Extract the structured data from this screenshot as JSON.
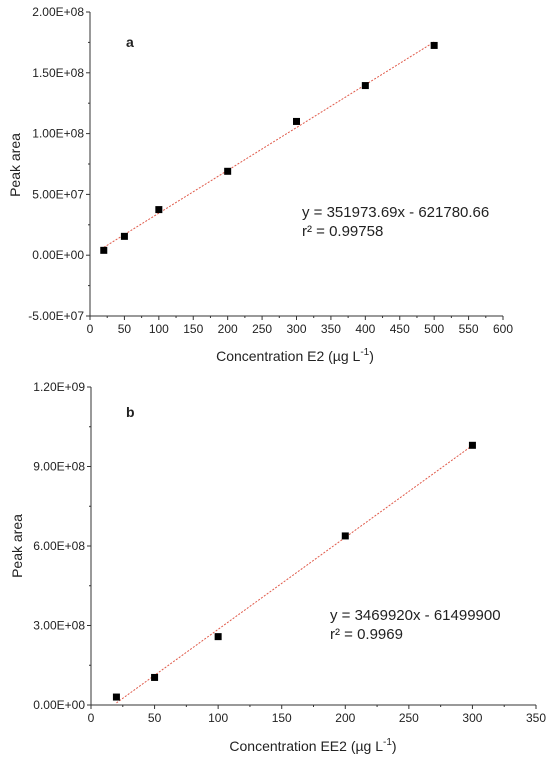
{
  "chart_data": [
    {
      "type": "scatter",
      "panel": "a",
      "xlabel": "Concentration E2 (µg L",
      "xlabel_sup": "-1",
      "xlabel_end": ")",
      "ylabel": "Peak area",
      "xlim": [
        0,
        600
      ],
      "ylim": [
        -50000000,
        200000000
      ],
      "xticks": [
        0,
        50,
        100,
        150,
        200,
        250,
        300,
        350,
        400,
        450,
        500,
        550,
        600
      ],
      "xtick_labels": [
        "0",
        "50",
        "100",
        "150",
        "200",
        "250",
        "300",
        "350",
        "400",
        "450",
        "500",
        "550",
        "600"
      ],
      "yticks": [
        -50000000,
        0,
        50000000,
        100000000,
        150000000,
        200000000
      ],
      "ytick_labels": [
        "-5.00E+07",
        "0.00E+00",
        "5.00E+07",
        "1.00E+08",
        "1.50E+08",
        "2.00E+08"
      ],
      "grid": false,
      "points": {
        "x": [
          20,
          50,
          100,
          200,
          300,
          400,
          500
        ],
        "y": [
          4000000,
          15500000,
          37500000,
          69000000,
          110000000,
          139500000,
          172500000
        ]
      },
      "fit": {
        "slope": 351973.69,
        "intercept": -621780.66,
        "x_range": [
          20,
          500
        ]
      },
      "equation": "y = 351973.69x - 621780.66",
      "r2": "r² = 0.99758",
      "marker_color": "#000000",
      "fit_color": "#e05a4a"
    },
    {
      "type": "scatter",
      "panel": "b",
      "xlabel": "Concentration EE2 (µg L",
      "xlabel_sup": "-1",
      "xlabel_end": ")",
      "ylabel": "Peak area",
      "xlim": [
        0,
        350
      ],
      "ylim": [
        0,
        1200000000
      ],
      "xticks": [
        0,
        50,
        100,
        150,
        200,
        250,
        300,
        350
      ],
      "xtick_labels": [
        "0",
        "50",
        "100",
        "150",
        "200",
        "250",
        "300",
        "350"
      ],
      "yticks": [
        0,
        300000000,
        600000000,
        900000000,
        1200000000
      ],
      "ytick_labels": [
        "0.00E+00",
        "3.00E+08",
        "6.00E+08",
        "9.00E+08",
        "1.20E+09"
      ],
      "grid": false,
      "points": {
        "x": [
          20,
          50,
          100,
          200,
          300
        ],
        "y": [
          30000000,
          104000000,
          258000000,
          638000000,
          980000000
        ]
      },
      "fit": {
        "slope": 3469920,
        "intercept": -61499900,
        "x_range": [
          20,
          300
        ]
      },
      "equation": "y = 3469920x - 61499900",
      "r2": "r² = 0.9969",
      "marker_color": "#000000",
      "fit_color": "#e05a4a"
    }
  ]
}
